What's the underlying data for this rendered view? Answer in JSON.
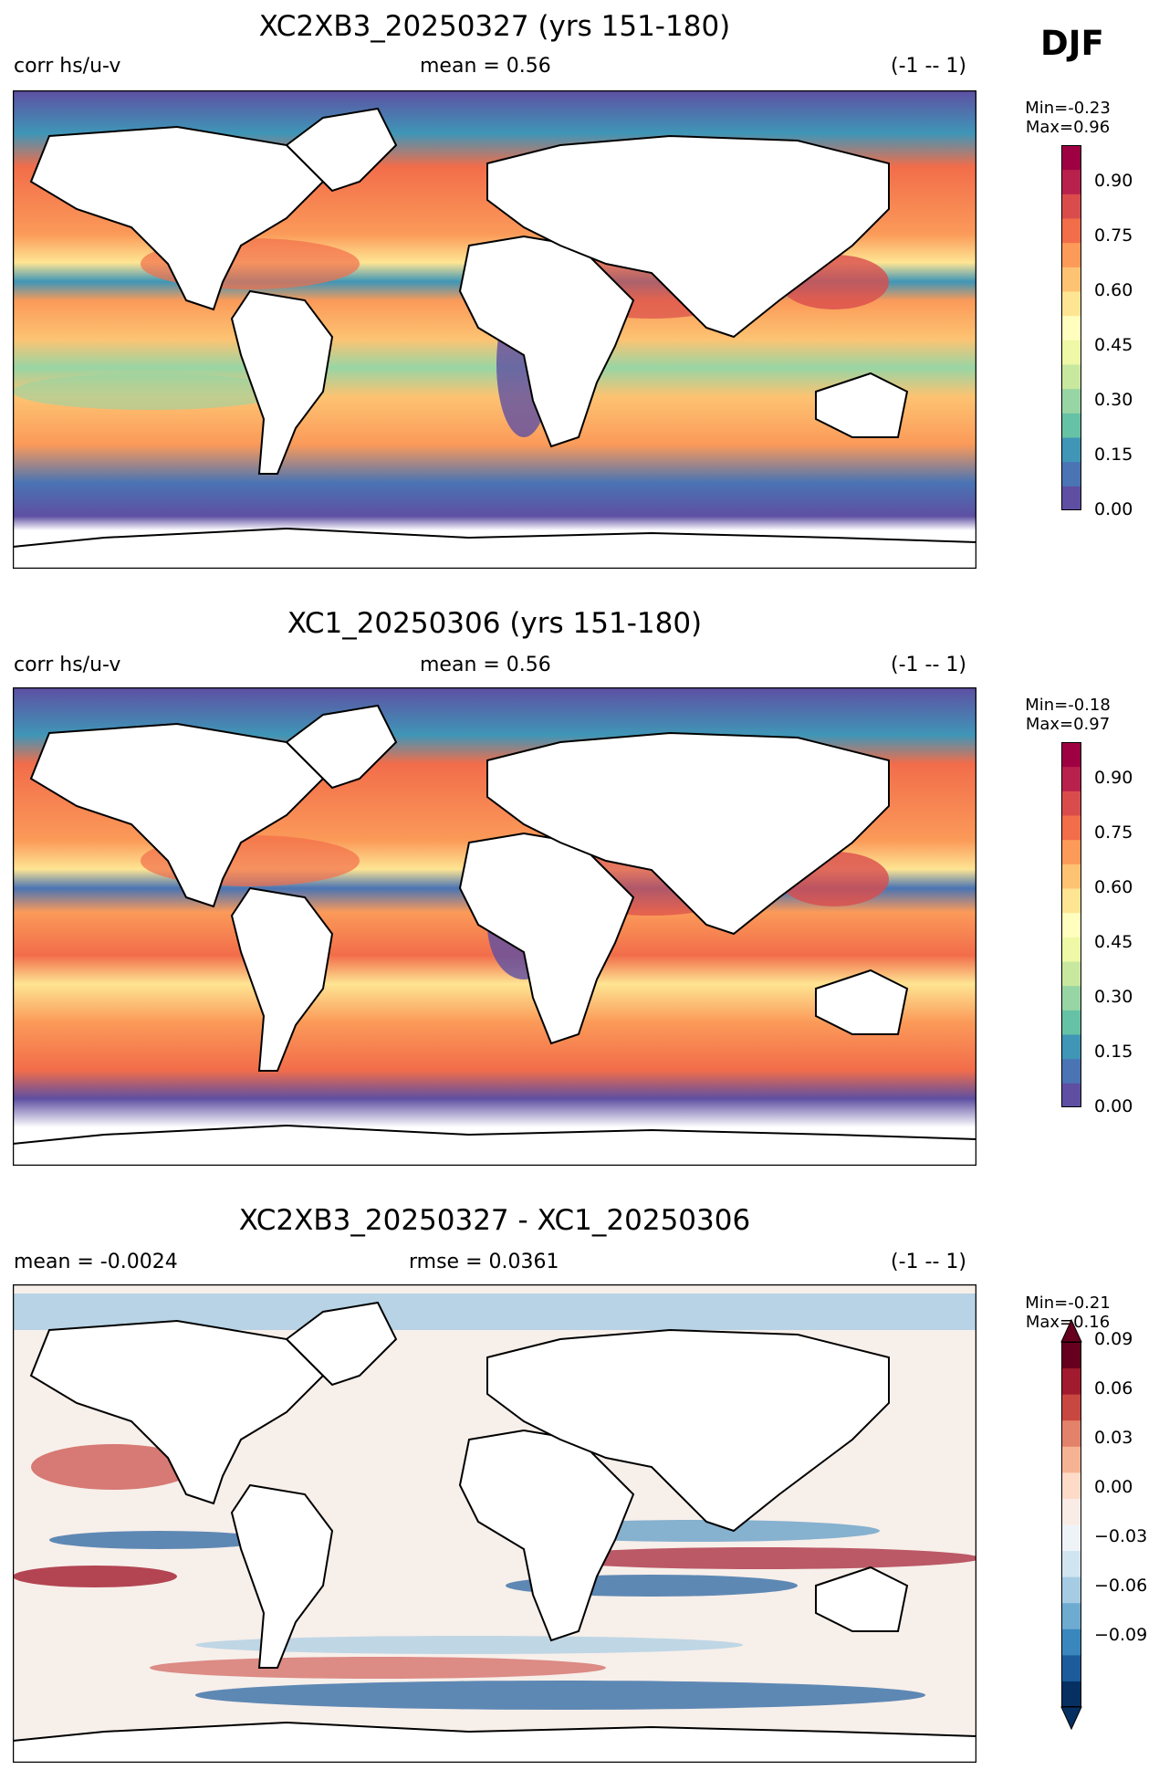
{
  "season": "DJF",
  "panels": [
    {
      "title": "XC2XB3_20250327 (yrs 151-180)",
      "left": "corr hs/u-v",
      "center": "mean = 0.56",
      "right": "(-1 -- 1)",
      "min_label": "Min=-0.23",
      "max_label": "Max=0.96",
      "colormap": "Spectral_r",
      "colorbar": {
        "ticks": [
          "0.00",
          "0.15",
          "0.30",
          "0.45",
          "0.60",
          "0.75",
          "0.90"
        ],
        "colors": [
          "#5e4fa2",
          "#4a74b4",
          "#3f96b7",
          "#66c2a5",
          "#98d5a4",
          "#c7e89e",
          "#eef8a6",
          "#fffebe",
          "#fee593",
          "#fdc372",
          "#fb9a59",
          "#f26d4a",
          "#da4c4c",
          "#b8214b",
          "#9e0142"
        ]
      }
    },
    {
      "title": "XC1_20250306 (yrs 151-180)",
      "left": "corr hs/u-v",
      "center": "mean = 0.56",
      "right": "(-1 -- 1)",
      "min_label": "Min=-0.18",
      "max_label": "Max=0.97",
      "colormap": "Spectral_r",
      "colorbar": {
        "ticks": [
          "0.00",
          "0.15",
          "0.30",
          "0.45",
          "0.60",
          "0.75",
          "0.90"
        ],
        "colors": [
          "#5e4fa2",
          "#4a74b4",
          "#3f96b7",
          "#66c2a5",
          "#98d5a4",
          "#c7e89e",
          "#eef8a6",
          "#fffebe",
          "#fee593",
          "#fdc372",
          "#fb9a59",
          "#f26d4a",
          "#da4c4c",
          "#b8214b",
          "#9e0142"
        ]
      }
    },
    {
      "title": "XC2XB3_20250327 - XC1_20250306",
      "left": "mean = -0.0024",
      "center": "rmse = 0.0361",
      "right": "(-1 -- 1)",
      "min_label": "Min=-0.21",
      "max_label": "Max=0.16",
      "colormap": "RdBu_r",
      "colorbar": {
        "ticks": [
          "−0.09",
          "−0.06",
          "−0.03",
          "0.00",
          "0.03",
          "0.06",
          "0.09"
        ],
        "colors": [
          "#053061",
          "#1c5c9c",
          "#3a87bd",
          "#6eabd0",
          "#a6cce3",
          "#d1e5f0",
          "#eef3f7",
          "#f9ece6",
          "#fddbc7",
          "#f6b394",
          "#e3826a",
          "#c94741",
          "#a11a2d",
          "#67001f"
        ]
      }
    }
  ]
}
